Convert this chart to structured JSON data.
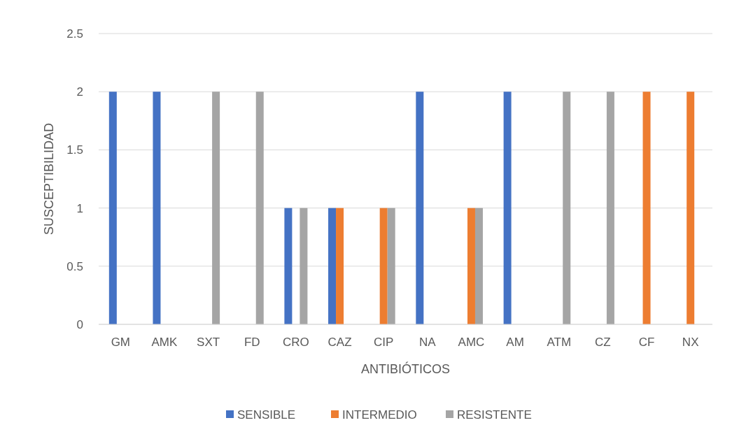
{
  "chart_data": {
    "type": "bar",
    "xlabel": "ANTIBIÓTICOS",
    "ylabel": "SUSCEPTIBILIDAD",
    "categories": [
      "GM",
      "AMK",
      "SXT",
      "FD",
      "CRO",
      "CAZ",
      "CIP",
      "NA",
      "AMC",
      "AM",
      "ATM",
      "CZ",
      "CF",
      "NX"
    ],
    "series": [
      {
        "name": "SENSIBLE",
        "color": "#4472c4",
        "values": [
          2,
          2,
          0,
          0,
          1,
          1,
          0,
          2,
          0,
          2,
          0,
          0,
          0,
          0
        ]
      },
      {
        "name": "INTERMEDIO",
        "color": "#ed7d31",
        "values": [
          0,
          0,
          0,
          0,
          0,
          1,
          1,
          0,
          1,
          0,
          0,
          0,
          2,
          2
        ]
      },
      {
        "name": "RESISTENTE",
        "color": "#a5a5a5",
        "values": [
          0,
          0,
          2,
          2,
          1,
          0,
          1,
          0,
          1,
          0,
          2,
          2,
          0,
          0
        ]
      }
    ],
    "ylim": [
      0,
      2.5
    ],
    "yticks": [
      0,
      0.5,
      1,
      1.5,
      2,
      2.5
    ],
    "grid": "y",
    "legend": "bottom"
  }
}
